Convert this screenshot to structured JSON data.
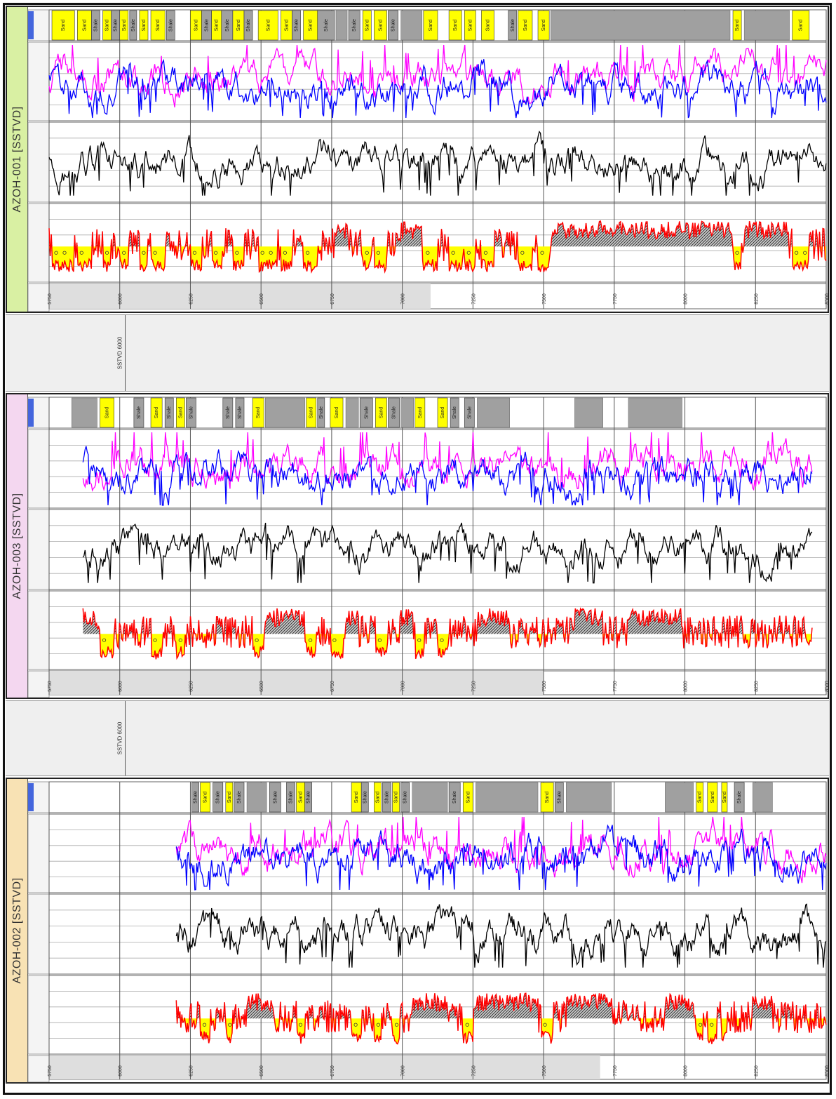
{
  "chart_data": {
    "type": "line",
    "depth_ticks": [
      "5750",
      "6000",
      "6250",
      "6500",
      "6750",
      "7000",
      "7250",
      "7500",
      "7750",
      "8000",
      "8250",
      "8500"
    ],
    "gap_label": "SSTVD 6000",
    "colors": {
      "lithology_sand": "#ffff00",
      "lithology_shale": "#a0a0a0",
      "curve_magenta": "#ff00ff",
      "curve_blue": "#0000ff",
      "curve_black": "#000000",
      "curve_red": "#ff0000",
      "fill_shale": "#555555",
      "fill_sand": "#ffff00",
      "well1_tab": "#d9f0a3",
      "well2_tab": "#f4d7f0",
      "well3_tab": "#f8e2b4"
    },
    "wells": [
      {
        "name": "AZOH-001 [SSTVD]",
        "tab_color": "#d9f0a3",
        "lithology": [
          {
            "label": "Sand",
            "type": "sand",
            "from": 5760,
            "to": 5840
          },
          {
            "label": "Sand",
            "type": "sand",
            "from": 5850,
            "to": 5900
          },
          {
            "label": "Shale",
            "type": "shale",
            "from": 5900,
            "to": 5930
          },
          {
            "label": "Sand",
            "type": "sand",
            "from": 5940,
            "to": 5970
          },
          {
            "label": "Shale",
            "type": "shale",
            "from": 5970,
            "to": 6000
          },
          {
            "label": "Sand",
            "type": "sand",
            "from": 6000,
            "to": 6030
          },
          {
            "label": "Shale",
            "type": "shale",
            "from": 6035,
            "to": 6060
          },
          {
            "label": "Sand",
            "type": "sand",
            "from": 6070,
            "to": 6100
          },
          {
            "label": "Sand",
            "type": "sand",
            "from": 6110,
            "to": 6160
          },
          {
            "label": "Shale",
            "type": "shale",
            "from": 6165,
            "to": 6195
          },
          {
            "label": "Sand",
            "type": "sand",
            "from": 6250,
            "to": 6290
          },
          {
            "label": "Shale",
            "type": "shale",
            "from": 6290,
            "to": 6325
          },
          {
            "label": "Sand",
            "type": "sand",
            "from": 6325,
            "to": 6360
          },
          {
            "label": "Shale",
            "type": "shale",
            "from": 6360,
            "to": 6400
          },
          {
            "label": "Sand",
            "type": "sand",
            "from": 6400,
            "to": 6440
          },
          {
            "label": "Shale",
            "type": "shale",
            "from": 6440,
            "to": 6470
          },
          {
            "label": "Sand",
            "type": "sand",
            "from": 6490,
            "to": 6560
          },
          {
            "label": "Sand",
            "type": "sand",
            "from": 6570,
            "to": 6610
          },
          {
            "label": "Shale",
            "type": "shale",
            "from": 6610,
            "to": 6640
          },
          {
            "label": "Sand",
            "type": "sand",
            "from": 6650,
            "to": 6700
          },
          {
            "label": "Shale",
            "type": "shale",
            "from": 6700,
            "to": 6760
          },
          {
            "label": "Shale",
            "type": "shale",
            "from": 6810,
            "to": 6850
          },
          {
            "label": "Sand",
            "type": "sand",
            "from": 6860,
            "to": 6890
          },
          {
            "label": "Sand",
            "type": "sand",
            "from": 6900,
            "to": 6945
          },
          {
            "label": "Shale",
            "type": "shale",
            "from": 6950,
            "to": 6985
          },
          {
            "label": "Sand",
            "type": "sand",
            "from": 7075,
            "to": 7125
          },
          {
            "label": "Sand",
            "type": "sand",
            "from": 7165,
            "to": 7210
          },
          {
            "label": "Sand",
            "type": "sand",
            "from": 7220,
            "to": 7260
          },
          {
            "label": "Sand",
            "type": "sand",
            "from": 7280,
            "to": 7325
          },
          {
            "label": "Shale",
            "type": "shale",
            "from": 7375,
            "to": 7405
          },
          {
            "label": "Sand",
            "type": "sand",
            "from": 7410,
            "to": 7460
          },
          {
            "label": "Sand",
            "type": "sand",
            "from": 7480,
            "to": 7520
          },
          {
            "label": "Sand",
            "type": "sand",
            "from": 8170,
            "to": 8200
          },
          {
            "label": "Sand",
            "type": "sand",
            "from": 8380,
            "to": 8440
          }
        ],
        "shale_blocks": [
          {
            "from": 6765,
            "to": 6805
          },
          {
            "from": 6995,
            "to": 7070
          },
          {
            "from": 7525,
            "to": 8160
          },
          {
            "from": 8210,
            "to": 8370
          }
        ]
      },
      {
        "name": "AZOH-003 [SSTVD]",
        "tab_color": "#f4d7f0",
        "lithology": [
          {
            "label": "Sand",
            "type": "sand",
            "from": 5930,
            "to": 5980
          },
          {
            "label": "Shale",
            "type": "shale",
            "from": 6050,
            "to": 6085
          },
          {
            "label": "Sand",
            "type": "sand",
            "from": 6110,
            "to": 6150
          },
          {
            "label": "Shale",
            "type": "shale",
            "from": 6160,
            "to": 6190
          },
          {
            "label": "Sand",
            "type": "sand",
            "from": 6200,
            "to": 6230
          },
          {
            "label": "Shale",
            "type": "shale",
            "from": 6235,
            "to": 6270
          },
          {
            "label": "Shale",
            "type": "shale",
            "from": 6365,
            "to": 6400
          },
          {
            "label": "Shale",
            "type": "shale",
            "from": 6410,
            "to": 6440
          },
          {
            "label": "Sand",
            "type": "sand",
            "from": 6470,
            "to": 6510
          },
          {
            "label": "Sand",
            "type": "sand",
            "from": 6660,
            "to": 6695
          },
          {
            "label": "Shale",
            "type": "shale",
            "from": 6700,
            "to": 6725
          },
          {
            "label": "Sand",
            "type": "sand",
            "from": 6745,
            "to": 6790
          },
          {
            "label": "Shale",
            "type": "shale",
            "from": 6850,
            "to": 6895
          },
          {
            "label": "Sand",
            "type": "sand",
            "from": 6905,
            "to": 6945
          },
          {
            "label": "Shale",
            "type": "shale",
            "from": 6950,
            "to": 6990
          },
          {
            "label": "Sand",
            "type": "sand",
            "from": 7045,
            "to": 7080
          },
          {
            "label": "Sand",
            "type": "sand",
            "from": 7125,
            "to": 7160
          },
          {
            "label": "Shale",
            "type": "shale",
            "from": 7170,
            "to": 7200
          },
          {
            "label": "Shale",
            "type": "shale",
            "from": 7220,
            "to": 7255
          }
        ],
        "shale_blocks": [
          {
            "from": 5830,
            "to": 5920
          },
          {
            "from": 6515,
            "to": 6655
          },
          {
            "from": 6800,
            "to": 6845
          },
          {
            "from": 6995,
            "to": 7040
          },
          {
            "from": 7265,
            "to": 7380
          },
          {
            "from": 7610,
            "to": 7710
          },
          {
            "from": 7800,
            "to": 7990
          }
        ]
      },
      {
        "name": "AZOH-002 [SSTVD]",
        "tab_color": "#f8e2b4",
        "lithology": [
          {
            "label": "Shale",
            "type": "shale",
            "from": 6255,
            "to": 6280
          },
          {
            "label": "Sand",
            "type": "sand",
            "from": 6285,
            "to": 6320
          },
          {
            "label": "Shale",
            "type": "shale",
            "from": 6330,
            "to": 6365
          },
          {
            "label": "Sand",
            "type": "sand",
            "from": 6375,
            "to": 6400
          },
          {
            "label": "Shale",
            "type": "shale",
            "from": 6405,
            "to": 6440
          },
          {
            "label": "Shale",
            "type": "shale",
            "from": 6530,
            "to": 6570
          },
          {
            "label": "Shale",
            "type": "shale",
            "from": 6590,
            "to": 6620
          },
          {
            "label": "Sand",
            "type": "sand",
            "from": 6625,
            "to": 6655
          },
          {
            "label": "Shale",
            "type": "shale",
            "from": 6655,
            "to": 6680
          },
          {
            "label": "Sand",
            "type": "sand",
            "from": 6820,
            "to": 6855
          },
          {
            "label": "Shale",
            "type": "shale",
            "from": 6855,
            "to": 6880
          },
          {
            "label": "Sand",
            "type": "sand",
            "from": 6900,
            "to": 6925
          },
          {
            "label": "Shale",
            "type": "shale",
            "from": 6930,
            "to": 6960
          },
          {
            "label": "Sand",
            "type": "sand",
            "from": 6965,
            "to": 6990
          },
          {
            "label": "Shale",
            "type": "shale",
            "from": 6995,
            "to": 7025
          },
          {
            "label": "Shale",
            "type": "shale",
            "from": 7165,
            "to": 7205
          },
          {
            "label": "Sand",
            "type": "sand",
            "from": 7215,
            "to": 7250
          },
          {
            "label": "Sand",
            "type": "sand",
            "from": 7490,
            "to": 7535
          },
          {
            "label": "Shale",
            "type": "shale",
            "from": 7540,
            "to": 7570
          },
          {
            "label": "Sand",
            "type": "sand",
            "from": 8040,
            "to": 8065
          },
          {
            "label": "Sand",
            "type": "sand",
            "from": 8080,
            "to": 8115
          },
          {
            "label": "Sand",
            "type": "sand",
            "from": 8130,
            "to": 8150
          },
          {
            "label": "Shale",
            "type": "shale",
            "from": 8175,
            "to": 8210
          }
        ],
        "shale_blocks": [
          {
            "from": 6450,
            "to": 6520
          },
          {
            "from": 7035,
            "to": 7160
          },
          {
            "from": 7260,
            "to": 7480
          },
          {
            "from": 7580,
            "to": 7740
          },
          {
            "from": 7930,
            "to": 8030
          },
          {
            "from": 8240,
            "to": 8310
          }
        ]
      }
    ]
  }
}
